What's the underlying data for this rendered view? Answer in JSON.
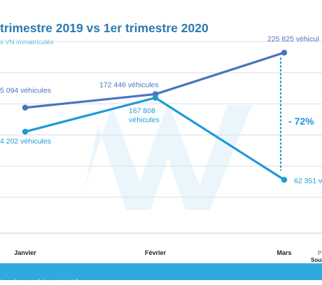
{
  "title": "trimestre 2019 vs 1er trimestre 2020",
  "subtitle": "s VN immatriculés",
  "footer": "ture des marchés automobiles",
  "source_labels": {
    "p": "P",
    "source": "Sourc"
  },
  "chart_data": {
    "type": "line",
    "categories": [
      "Janvier",
      "Février",
      "Mars"
    ],
    "ylim": [
      0,
      280000
    ],
    "grid": true,
    "series": [
      {
        "values": [
          155094,
          172446,
          225825
        ],
        "labels": [
          "5 094 véhicules",
          "172 446 véhicules",
          "225 825 véhicul"
        ],
        "color": "#4a72c0"
      },
      {
        "values": [
          124202,
          167808,
          62351
        ],
        "labels": [
          "4 202 véhicules",
          "167 808\nvéhicules",
          "62 351 v"
        ],
        "color": "#1e9ad6"
      }
    ],
    "annotations": [
      {
        "text": "- 72%",
        "color": "#1e9ad6"
      }
    ]
  }
}
